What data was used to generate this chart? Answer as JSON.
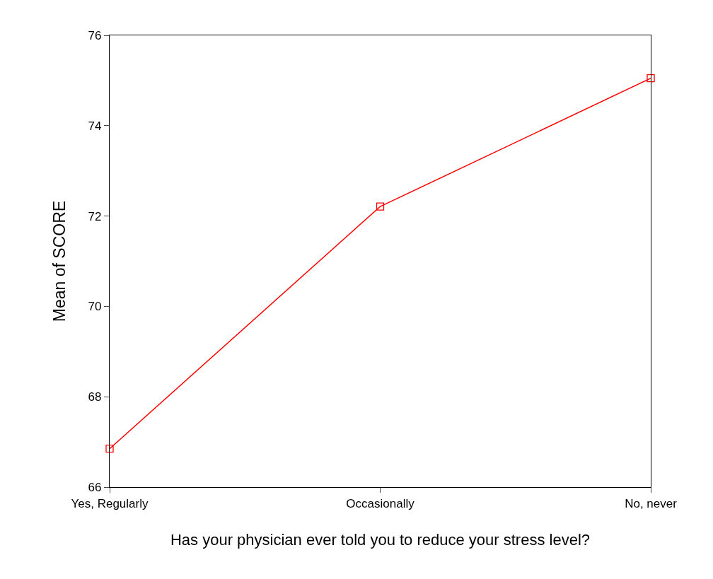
{
  "chart_data": {
    "type": "line",
    "xlabel": "Has your physician ever told you to reduce your stress level?",
    "ylabel": "Mean of SCORE",
    "categories": [
      "Yes, Regularly",
      "Occasionally",
      "No, never"
    ],
    "series": [
      {
        "color": "#ff0000",
        "values": [
          66.85,
          72.21,
          75.05
        ]
      }
    ],
    "ylim": [
      66,
      76
    ],
    "yticks": [
      66,
      68,
      70,
      72,
      74,
      76
    ],
    "legend": false,
    "marker": "square",
    "line_style": "solid"
  }
}
